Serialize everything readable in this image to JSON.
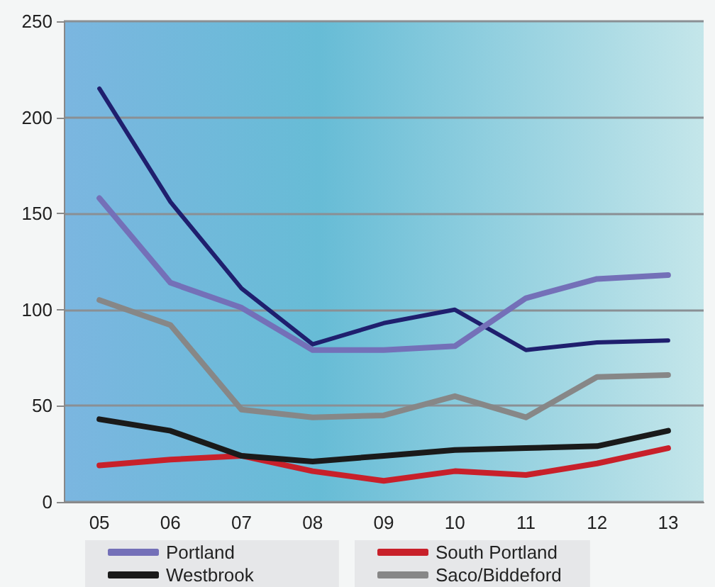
{
  "chart_data": {
    "type": "line",
    "categories": [
      "05",
      "06",
      "07",
      "08",
      "09",
      "10",
      "11",
      "12",
      "13"
    ],
    "series": [
      {
        "color": "#1f1f6e",
        "values": [
          215,
          156,
          111,
          82,
          93,
          100,
          79,
          83,
          84
        ]
      },
      {
        "name": "Portland",
        "color": "#7470b8",
        "values": [
          158,
          114,
          101,
          79,
          79,
          81,
          106,
          116,
          118
        ]
      },
      {
        "name": "South Portland",
        "color": "#c8202a",
        "values": [
          19,
          22,
          24,
          16,
          11,
          16,
          14,
          20,
          28
        ]
      },
      {
        "name": "Westbrook",
        "color": "#1a1a1a",
        "values": [
          43,
          37,
          24,
          21,
          24,
          27,
          28,
          29,
          37
        ]
      },
      {
        "name": "Saco/Biddeford",
        "color": "#878787",
        "values": [
          105,
          92,
          48,
          44,
          45,
          55,
          44,
          65,
          66
        ]
      }
    ],
    "ylim": [
      0,
      250
    ],
    "yticks": [
      0,
      50,
      100,
      150,
      200,
      250
    ],
    "grid": "y",
    "legend": "bottom",
    "marker": "none",
    "line_style": "solid"
  }
}
